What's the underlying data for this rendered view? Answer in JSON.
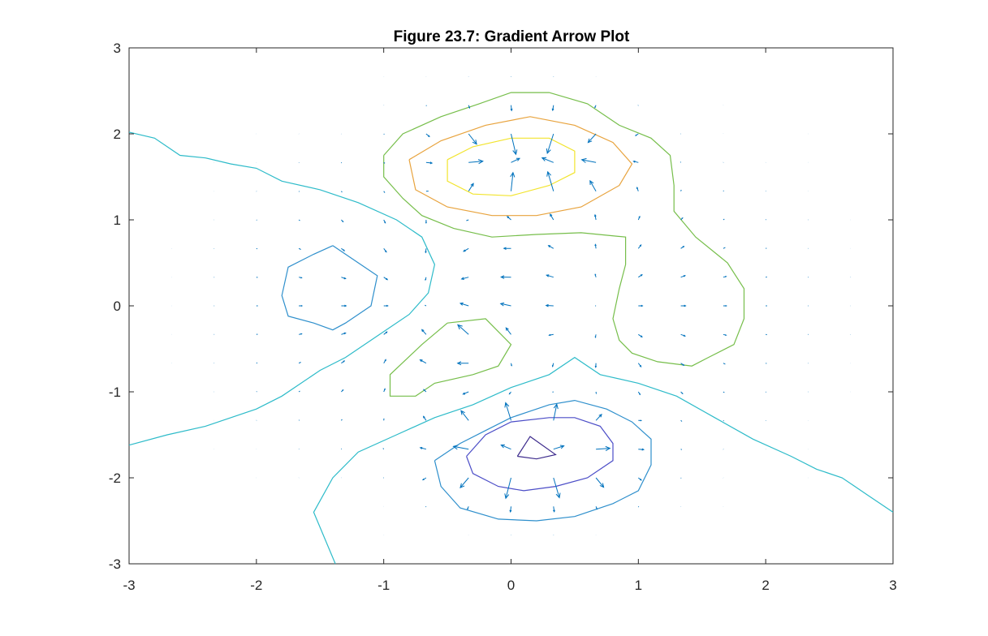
{
  "chart_data": {
    "type": "quiver-contour",
    "title": "Figure 23.7: Gradient Arrow Plot",
    "xlabel": "",
    "ylabel": "",
    "xlim": [
      -3,
      3
    ],
    "ylim": [
      -3,
      3
    ],
    "grid": false,
    "x_ticks": [
      -3,
      -2,
      -1,
      0,
      1,
      2,
      3
    ],
    "y_ticks": [
      -3,
      -2,
      -1,
      0,
      1,
      2,
      3
    ],
    "x_tick_labels": [
      "-3",
      "-2",
      "-1",
      "0",
      "1",
      "2",
      "3"
    ],
    "y_tick_labels": [
      "-3",
      "-2",
      "-1",
      "0",
      "1",
      "2",
      "3"
    ],
    "quiver": {
      "color": "#0072BD",
      "grid_range": [
        -3,
        3
      ],
      "grid_step": 0.3333,
      "field": "-grad(z), z = x*exp(-x^2-y^2) - 0.9*exp(-(x-0.15)^2/0.3-(y-1.7)^2/0.15) + 0.9*exp(-(x-0.15)^2/0.3-(y+1.7)^2/0.15) + 0.35*exp(-(x+0.2)^2/0.15-(y+0.6)^2/0.15)"
    },
    "contours": [
      {
        "level": "outer",
        "color": "#2DBBC9",
        "points": [
          [
            -3.0,
            2.02
          ],
          [
            -2.8,
            1.95
          ],
          [
            -2.6,
            1.75
          ],
          [
            -2.4,
            1.72
          ],
          [
            -2.2,
            1.65
          ],
          [
            -2.0,
            1.6
          ],
          [
            -1.8,
            1.45
          ],
          [
            -1.5,
            1.35
          ],
          [
            -1.2,
            1.2
          ],
          [
            -0.9,
            1.0
          ],
          [
            -0.7,
            0.8
          ],
          [
            -0.6,
            0.48
          ],
          [
            -0.65,
            0.15
          ],
          [
            -0.8,
            -0.1
          ],
          [
            -1.0,
            -0.3
          ],
          [
            -1.3,
            -0.6
          ],
          [
            -1.5,
            -0.75
          ],
          [
            -1.8,
            -1.05
          ],
          [
            -2.0,
            -1.2
          ],
          [
            -2.4,
            -1.4
          ],
          [
            -2.7,
            -1.5
          ],
          [
            -3.0,
            -1.62
          ]
        ]
      },
      {
        "level": "outer",
        "color": "#2DBBC9",
        "points": [
          [
            -1.38,
            -3.0
          ],
          [
            -1.55,
            -2.4
          ],
          [
            -1.4,
            -2.0
          ],
          [
            -1.2,
            -1.7
          ],
          [
            -0.9,
            -1.5
          ],
          [
            -0.6,
            -1.3
          ],
          [
            -0.3,
            -1.15
          ],
          [
            0.0,
            -0.95
          ],
          [
            0.3,
            -0.8
          ],
          [
            0.5,
            -0.6
          ],
          [
            0.7,
            -0.8
          ],
          [
            1.0,
            -0.9
          ],
          [
            1.3,
            -1.05
          ],
          [
            1.6,
            -1.3
          ],
          [
            1.9,
            -1.55
          ],
          [
            2.2,
            -1.75
          ],
          [
            2.4,
            -1.9
          ],
          [
            2.6,
            -2.0
          ],
          [
            2.7,
            -2.1
          ],
          [
            2.8,
            -2.2
          ],
          [
            3.0,
            -2.4
          ]
        ]
      },
      {
        "level": "low-left",
        "color": "#2E8FCC",
        "points": [
          [
            -1.4,
            0.7
          ],
          [
            -1.2,
            0.5
          ],
          [
            -1.05,
            0.35
          ],
          [
            -1.1,
            0.0
          ],
          [
            -1.3,
            -0.2
          ],
          [
            -1.4,
            -0.28
          ],
          [
            -1.55,
            -0.2
          ],
          [
            -1.75,
            -0.12
          ],
          [
            -1.8,
            0.12
          ],
          [
            -1.75,
            0.45
          ],
          [
            -1.55,
            0.6
          ],
          [
            -1.4,
            0.7
          ]
        ]
      },
      {
        "level": "low-bottom-1",
        "color": "#2E8FCC",
        "points": [
          [
            -0.6,
            -1.8
          ],
          [
            -0.4,
            -1.6
          ],
          [
            -0.2,
            -1.45
          ],
          [
            0.0,
            -1.3
          ],
          [
            0.3,
            -1.15
          ],
          [
            0.5,
            -1.1
          ],
          [
            0.75,
            -1.2
          ],
          [
            0.95,
            -1.35
          ],
          [
            1.1,
            -1.55
          ],
          [
            1.1,
            -1.85
          ],
          [
            1.0,
            -2.15
          ],
          [
            0.8,
            -2.3
          ],
          [
            0.5,
            -2.45
          ],
          [
            0.2,
            -2.5
          ],
          [
            -0.1,
            -2.48
          ],
          [
            -0.4,
            -2.35
          ],
          [
            -0.55,
            -2.1
          ],
          [
            -0.6,
            -1.8
          ]
        ]
      },
      {
        "level": "low-bottom-2",
        "color": "#4B4DC7",
        "points": [
          [
            -0.35,
            -1.75
          ],
          [
            -0.2,
            -1.5
          ],
          [
            0.0,
            -1.35
          ],
          [
            0.3,
            -1.3
          ],
          [
            0.5,
            -1.3
          ],
          [
            0.7,
            -1.4
          ],
          [
            0.8,
            -1.6
          ],
          [
            0.8,
            -1.8
          ],
          [
            0.6,
            -2.0
          ],
          [
            0.35,
            -2.1
          ],
          [
            0.1,
            -2.15
          ],
          [
            -0.1,
            -2.1
          ],
          [
            -0.3,
            -1.95
          ],
          [
            -0.35,
            -1.75
          ]
        ]
      },
      {
        "level": "low-bottom-3",
        "color": "#3C2A8C",
        "points": [
          [
            0.05,
            -1.75
          ],
          [
            0.15,
            -1.52
          ],
          [
            0.35,
            -1.73
          ],
          [
            0.2,
            -1.78
          ],
          [
            0.05,
            -1.75
          ]
        ]
      },
      {
        "level": "high-top-1",
        "color": "#76BE4A",
        "points": [
          [
            -1.0,
            1.75
          ],
          [
            -0.85,
            2.0
          ],
          [
            -0.55,
            2.2
          ],
          [
            -0.25,
            2.35
          ],
          [
            0.0,
            2.48
          ],
          [
            0.3,
            2.48
          ],
          [
            0.6,
            2.35
          ],
          [
            0.85,
            2.1
          ],
          [
            1.1,
            1.95
          ],
          [
            1.25,
            1.75
          ],
          [
            1.28,
            1.4
          ],
          [
            1.28,
            1.1
          ],
          [
            1.45,
            0.8
          ],
          [
            1.7,
            0.5
          ],
          [
            1.83,
            0.2
          ],
          [
            1.83,
            -0.15
          ],
          [
            1.75,
            -0.45
          ],
          [
            1.55,
            -0.6
          ],
          [
            1.42,
            -0.7
          ],
          [
            1.15,
            -0.65
          ],
          [
            0.95,
            -0.55
          ],
          [
            0.85,
            -0.4
          ],
          [
            0.8,
            -0.15
          ],
          [
            0.85,
            0.2
          ],
          [
            0.9,
            0.48
          ],
          [
            0.9,
            0.8
          ],
          [
            0.55,
            0.85
          ],
          [
            0.2,
            0.83
          ],
          [
            -0.15,
            0.8
          ],
          [
            -0.45,
            0.9
          ],
          [
            -0.7,
            1.05
          ],
          [
            -0.85,
            1.25
          ],
          [
            -1.0,
            1.5
          ],
          [
            -1.0,
            1.75
          ]
        ]
      },
      {
        "level": "high-top-2",
        "color": "#E8A33D",
        "points": [
          [
            -0.8,
            1.7
          ],
          [
            -0.55,
            1.92
          ],
          [
            -0.2,
            2.1
          ],
          [
            0.15,
            2.2
          ],
          [
            0.5,
            2.1
          ],
          [
            0.8,
            1.9
          ],
          [
            0.95,
            1.65
          ],
          [
            0.85,
            1.4
          ],
          [
            0.55,
            1.15
          ],
          [
            0.2,
            1.05
          ],
          [
            -0.15,
            1.05
          ],
          [
            -0.5,
            1.15
          ],
          [
            -0.75,
            1.35
          ],
          [
            -0.8,
            1.7
          ]
        ]
      },
      {
        "level": "high-top-3",
        "color": "#F2E42E",
        "points": [
          [
            -0.5,
            1.7
          ],
          [
            -0.3,
            1.85
          ],
          [
            0.0,
            1.95
          ],
          [
            0.3,
            1.95
          ],
          [
            0.5,
            1.8
          ],
          [
            0.5,
            1.55
          ],
          [
            0.3,
            1.4
          ],
          [
            0.0,
            1.28
          ],
          [
            -0.3,
            1.3
          ],
          [
            -0.5,
            1.45
          ],
          [
            -0.5,
            1.7
          ]
        ]
      },
      {
        "level": "bump-center",
        "color": "#76BE4A",
        "points": [
          [
            -0.5,
            -0.2
          ],
          [
            -0.2,
            -0.15
          ],
          [
            0.0,
            -0.45
          ],
          [
            -0.1,
            -0.7
          ],
          [
            -0.3,
            -0.8
          ],
          [
            -0.6,
            -0.9
          ],
          [
            -0.75,
            -1.05
          ],
          [
            -0.95,
            -1.05
          ],
          [
            -0.95,
            -0.8
          ],
          [
            -0.7,
            -0.45
          ],
          [
            -0.5,
            -0.2
          ]
        ]
      }
    ]
  }
}
